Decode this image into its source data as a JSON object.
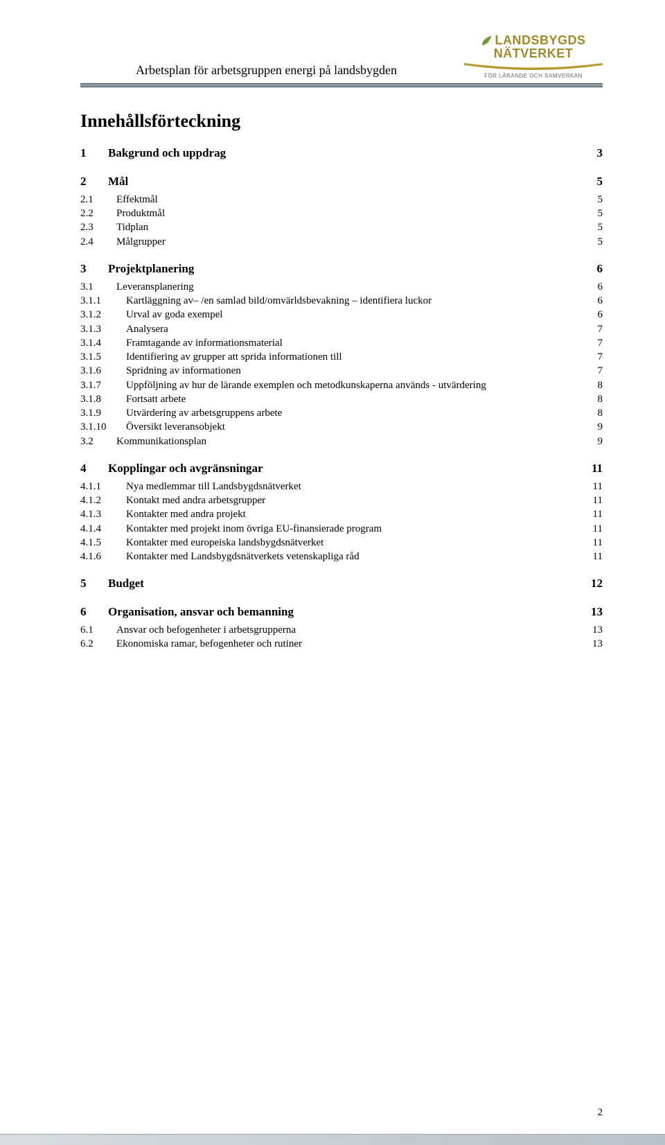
{
  "header": {
    "doc_title": "Arbetsplan för arbetsgruppen energi på landsbygden",
    "logo": {
      "word1": "LANDSBYGDS",
      "word2": "NÄTVERKET",
      "tagline": "FÖR LÄRANDE OCH SAMVERKAN",
      "leaf_color": "#7aa23c",
      "text_color": "#a08a2a"
    }
  },
  "colors": {
    "divider": "#8a9aa8",
    "footer_grad_from": "#d9dde0",
    "footer_grad_to": "#b8c1c7"
  },
  "toc_heading": "Innehållsförteckning",
  "toc": [
    {
      "level": 1,
      "num": "1",
      "label": "Bakgrund och uppdrag",
      "page": "3",
      "block": true
    },
    {
      "level": 1,
      "num": "2",
      "label": "Mål",
      "page": "5",
      "block": true
    },
    {
      "level": 2,
      "num": "2.1",
      "label": "Effektmål",
      "page": "5"
    },
    {
      "level": 2,
      "num": "2.2",
      "label": "Produktmål",
      "page": "5"
    },
    {
      "level": 2,
      "num": "2.3",
      "label": "Tidplan",
      "page": "5"
    },
    {
      "level": 2,
      "num": "2.4",
      "label": "Målgrupper",
      "page": "5"
    },
    {
      "level": 1,
      "num": "3",
      "label": "Projektplanering",
      "page": "6",
      "block": true
    },
    {
      "level": 2,
      "num": "3.1",
      "label": "Leveransplanering",
      "page": "6"
    },
    {
      "level": 3,
      "num": "3.1.1",
      "label": "Kartläggning av– /en samlad bild/omvärldsbevakning – identifiera luckor",
      "page": "6"
    },
    {
      "level": 3,
      "num": "3.1.2",
      "label": "Urval av goda exempel",
      "page": "6"
    },
    {
      "level": 3,
      "num": "3.1.3",
      "label": "Analysera",
      "page": "7"
    },
    {
      "level": 3,
      "num": "3.1.4",
      "label": "Framtagande av informationsmaterial",
      "page": "7"
    },
    {
      "level": 3,
      "num": "3.1.5",
      "label": "Identifiering av grupper att sprida informationen till",
      "page": "7"
    },
    {
      "level": 3,
      "num": "3.1.6",
      "label": "Spridning av informationen",
      "page": "7"
    },
    {
      "level": 3,
      "num": "3.1.7",
      "label": "Uppföljning av hur de lärande exemplen och metodkunskaperna används - utvärdering",
      "page": "8"
    },
    {
      "level": 3,
      "num": "3.1.8",
      "label": "Fortsatt arbete",
      "page": "8"
    },
    {
      "level": 3,
      "num": "3.1.9",
      "label": "Utvärdering av arbetsgruppens arbete",
      "page": "8"
    },
    {
      "level": 3,
      "num": "3.1.10",
      "label": "Översikt leveransobjekt",
      "page": "9"
    },
    {
      "level": 2,
      "num": "3.2",
      "label": "Kommunikationsplan",
      "page": "9"
    },
    {
      "level": 1,
      "num": "4",
      "label": "Kopplingar och avgränsningar",
      "page": "11",
      "block": true
    },
    {
      "level": 3,
      "num": "4.1.1",
      "label": "Nya medlemmar till Landsbygdsnätverket",
      "page": "11"
    },
    {
      "level": 3,
      "num": "4.1.2",
      "label": "Kontakt med andra arbetsgrupper",
      "page": "11"
    },
    {
      "level": 3,
      "num": "4.1.3",
      "label": "Kontakter med andra projekt",
      "page": "11"
    },
    {
      "level": 3,
      "num": "4.1.4",
      "label": "Kontakter med projekt inom övriga EU-finansierade program",
      "page": "11"
    },
    {
      "level": 3,
      "num": "4.1.5",
      "label": "Kontakter med europeiska landsbygdsnätverket",
      "page": "11"
    },
    {
      "level": 3,
      "num": "4.1.6",
      "label": "Kontakter med Landsbygdsnätverkets vetenskapliga råd",
      "page": "11"
    },
    {
      "level": 1,
      "num": "5",
      "label": "Budget",
      "page": "12",
      "block": true
    },
    {
      "level": 1,
      "num": "6",
      "label": "Organisation, ansvar och bemanning",
      "page": "13",
      "block": true
    },
    {
      "level": 2,
      "num": "6.1",
      "label": "Ansvar och befogenheter i arbetsgrupperna",
      "page": "13"
    },
    {
      "level": 2,
      "num": "6.2",
      "label": "Ekonomiska ramar, befogenheter och rutiner",
      "page": "13"
    }
  ],
  "page_number": "2"
}
